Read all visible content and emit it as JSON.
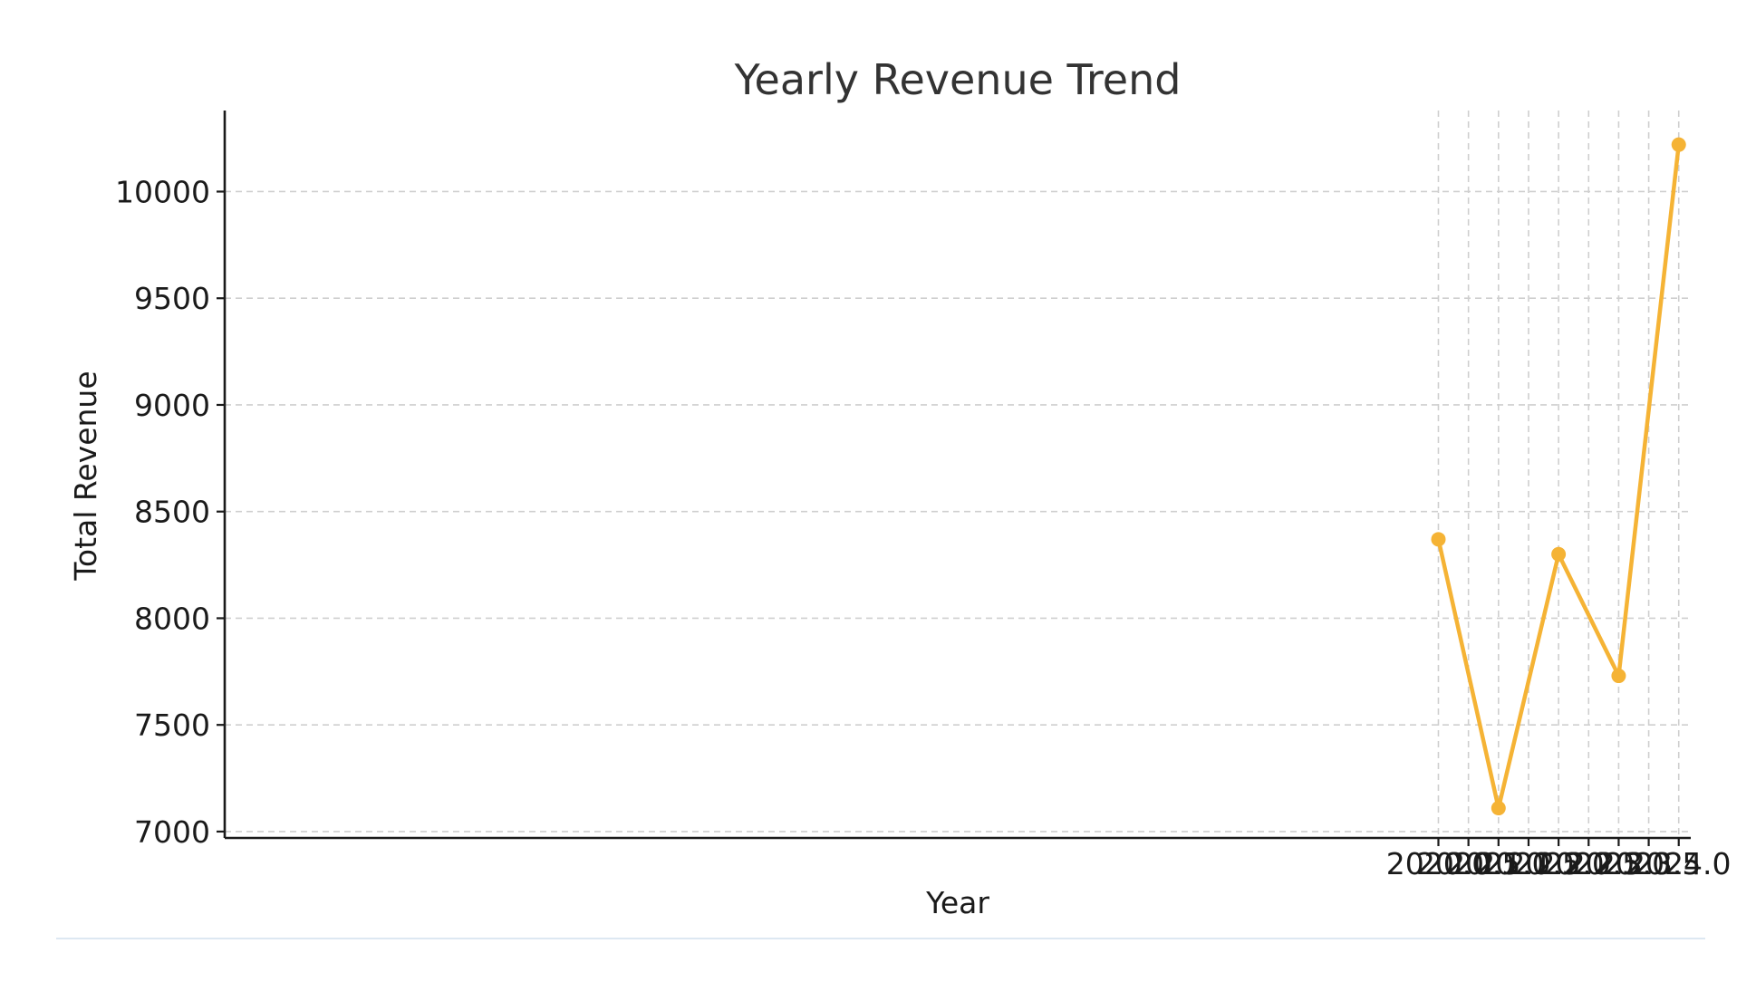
{
  "chart_data": {
    "type": "line",
    "title": "Yearly Revenue Trend",
    "xlabel": "Year",
    "ylabel": "Total Revenue",
    "xlim": [
      1999.8,
      2024.2
    ],
    "ylim": [
      6970,
      10380
    ],
    "xticks": [
      2020.0,
      2020.5,
      2021.0,
      2021.5,
      2022.0,
      2022.5,
      2023.0,
      2023.5,
      2024.0
    ],
    "xtick_labels": [
      "2020.0",
      "2020.5",
      "2021.0",
      "2021.5",
      "2022.0",
      "2022.5",
      "2023.0",
      "2023.5",
      "2024.0"
    ],
    "yticks": [
      7000,
      7500,
      8000,
      8500,
      9000,
      9500,
      10000
    ],
    "ytick_labels": [
      "7000",
      "7500",
      "8000",
      "8500",
      "9000",
      "9500",
      "10000"
    ],
    "grid": true,
    "series": [
      {
        "x": [
          2020,
          2021,
          2022,
          2023,
          2024
        ],
        "values": [
          8370,
          7110,
          8300,
          7730,
          10220
        ],
        "color": "#F5B335",
        "marker": "circle"
      }
    ]
  }
}
